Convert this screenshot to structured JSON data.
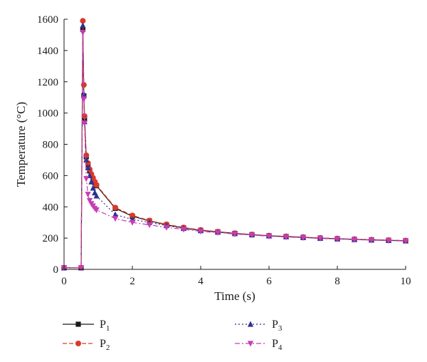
{
  "chart_data": {
    "type": "line",
    "xlabel": "Time (s)",
    "ylabel": "Temperature (°C)",
    "xlim": [
      0,
      10
    ],
    "ylim": [
      0,
      1600
    ],
    "xticks": [
      0,
      2,
      4,
      6,
      8,
      10
    ],
    "yticks": [
      0,
      200,
      400,
      600,
      800,
      1000,
      1200,
      1400,
      1600
    ],
    "grid": false,
    "legend_position": "bottom",
    "series": [
      {
        "name": "P",
        "subscript": "1",
        "color": "#1a1a1a",
        "marker": "square",
        "line": "solid",
        "x": [
          0,
          0.5,
          0.55,
          0.58,
          0.6,
          0.65,
          0.7,
          0.75,
          0.8,
          0.85,
          0.9,
          0.95,
          1.5,
          2,
          2.5,
          3,
          3.5,
          4,
          4.5,
          5,
          5.5,
          6,
          6.5,
          7,
          7.5,
          8,
          8.5,
          9,
          9.5,
          10
        ],
        "y": [
          10,
          10,
          1535,
          1110,
          960,
          720,
          670,
          630,
          600,
          575,
          555,
          535,
          390,
          340,
          310,
          285,
          265,
          250,
          240,
          230,
          222,
          215,
          210,
          205,
          200,
          196,
          192,
          189,
          186,
          183
        ]
      },
      {
        "name": "P",
        "subscript": "2",
        "color": "#d93a2b",
        "marker": "circle",
        "line": "dashed",
        "x": [
          0,
          0.5,
          0.55,
          0.58,
          0.6,
          0.65,
          0.7,
          0.75,
          0.8,
          0.85,
          0.9,
          0.95,
          1.5,
          2,
          2.5,
          3,
          3.5,
          4,
          4.5,
          5,
          5.5,
          6,
          6.5,
          7,
          7.5,
          8,
          8.5,
          9,
          9.5,
          10
        ],
        "y": [
          10,
          10,
          1590,
          1180,
          980,
          730,
          680,
          640,
          610,
          585,
          560,
          540,
          395,
          345,
          312,
          288,
          268,
          252,
          241,
          231,
          223,
          216,
          211,
          206,
          201,
          197,
          193,
          190,
          187,
          184
        ]
      },
      {
        "name": "P",
        "subscript": "3",
        "color": "#2e3192",
        "marker": "triangle-up",
        "line": "dotted",
        "x": [
          0,
          0.5,
          0.55,
          0.58,
          0.6,
          0.65,
          0.7,
          0.75,
          0.8,
          0.85,
          0.9,
          0.95,
          1.5,
          2,
          2.5,
          3,
          3.5,
          4,
          4.5,
          5,
          5.5,
          6,
          6.5,
          7,
          7.5,
          8,
          8.5,
          9,
          9.5,
          10
        ],
        "y": [
          10,
          10,
          1560,
          1120,
          945,
          700,
          650,
          600,
          560,
          520,
          490,
          470,
          350,
          320,
          300,
          280,
          262,
          248,
          238,
          229,
          221,
          214,
          209,
          204,
          199,
          195,
          191,
          188,
          185,
          182
        ]
      },
      {
        "name": "P",
        "subscript": "4",
        "color": "#c83cb4",
        "marker": "triangle-down",
        "line": "dash-dot",
        "x": [
          0,
          0.5,
          0.55,
          0.58,
          0.6,
          0.65,
          0.7,
          0.75,
          0.8,
          0.85,
          0.9,
          0.95,
          1.5,
          2,
          2.5,
          3,
          3.5,
          4,
          4.5,
          5,
          5.5,
          6,
          6.5,
          7,
          7.5,
          8,
          8.5,
          9,
          9.5,
          10
        ],
        "y": [
          10,
          10,
          1515,
          1090,
          935,
          580,
          480,
          440,
          420,
          405,
          390,
          380,
          325,
          300,
          285,
          268,
          256,
          243,
          235,
          226,
          219,
          212,
          207,
          203,
          198,
          194,
          190,
          187,
          184,
          181
        ]
      }
    ]
  }
}
